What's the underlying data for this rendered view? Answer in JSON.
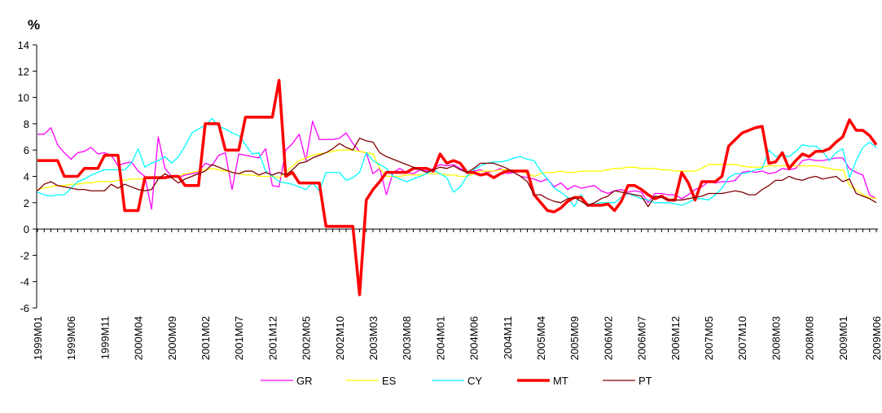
{
  "chart_data": {
    "type": "line",
    "ylabel": "%",
    "categories": [
      "1999M01",
      null,
      null,
      null,
      null,
      "1999M06",
      null,
      null,
      null,
      null,
      "1999M11",
      null,
      null,
      null,
      null,
      "2000M04",
      null,
      null,
      null,
      null,
      "2000M09",
      null,
      null,
      null,
      null,
      "2001M02",
      null,
      null,
      null,
      null,
      "2001M07",
      null,
      null,
      null,
      null,
      "2001M12",
      null,
      null,
      null,
      null,
      "2002M05",
      null,
      null,
      null,
      null,
      "2002M10",
      null,
      null,
      null,
      null,
      "2003M03",
      null,
      null,
      null,
      null,
      "2003M08",
      null,
      null,
      null,
      null,
      "2004M01",
      null,
      null,
      null,
      null,
      "2004M06",
      null,
      null,
      null,
      null,
      "2004M11",
      null,
      null,
      null,
      null,
      "2005M04",
      null,
      null,
      null,
      null,
      "2005M09",
      null,
      null,
      null,
      null,
      "2006M02",
      null,
      null,
      null,
      null,
      "2006M07",
      null,
      null,
      null,
      null,
      "2006M12",
      null,
      null,
      null,
      null,
      "2007M05",
      null,
      null,
      null,
      null,
      "2007M10",
      null,
      null,
      null,
      null,
      "2008M03",
      null,
      null,
      null,
      null,
      "2008M08",
      null,
      null,
      null,
      null,
      "2009M01",
      null,
      null,
      null,
      null,
      "2009M06"
    ],
    "ylim": [
      -6,
      14
    ],
    "yticks": [
      -6,
      -4,
      -2,
      0,
      2,
      4,
      6,
      8,
      10,
      12,
      14
    ],
    "grid": false,
    "legend": "bottom",
    "series": [
      {
        "name": "GR",
        "color": "#ff00ff",
        "width": 1.3,
        "values": [
          7.2,
          7.2,
          7.7,
          6.4,
          5.8,
          5.3,
          5.8,
          5.9,
          6.2,
          5.7,
          5.8,
          5.6,
          4.8,
          5.0,
          5.1,
          4.4,
          4.0,
          1.5,
          7.0,
          4.6,
          4.0,
          3.9,
          4.1,
          4.2,
          4.3,
          5.0,
          4.8,
          5.6,
          5.8,
          3.0,
          5.7,
          5.6,
          5.5,
          5.4,
          6.1,
          3.3,
          3.2,
          6.0,
          6.5,
          7.2,
          5.2,
          8.2,
          6.8,
          6.8,
          6.8,
          6.9,
          7.3,
          6.5,
          5.9,
          5.8,
          4.2,
          4.6,
          2.6,
          4.3,
          4.6,
          4.3,
          4.2,
          4.5,
          4.4,
          4.6,
          4.9,
          4.8,
          4.9,
          4.6,
          4.3,
          4.4,
          4.5,
          4.3,
          4.4,
          4.6,
          4.2,
          4.3,
          4.0,
          3.9,
          3.8,
          3.6,
          3.8,
          3.2,
          3.5,
          3.0,
          3.3,
          3.1,
          3.2,
          3.3,
          2.9,
          2.7,
          2.9,
          3.0,
          2.8,
          2.9,
          2.8,
          2.0,
          2.7,
          2.7,
          2.6,
          2.6,
          2.3,
          2.6,
          3.0,
          3.2,
          3.6,
          3.5,
          3.6,
          3.6,
          3.7,
          4.3,
          4.4,
          4.3,
          4.4,
          4.2,
          4.3,
          4.6,
          4.5,
          4.6,
          5.2,
          5.3,
          5.2,
          5.2,
          5.3,
          5.4,
          5.4,
          4.6,
          4.3,
          4.1,
          2.6,
          2.3
        ]
      },
      {
        "name": "ES",
        "color": "#ffff00",
        "width": 1.3,
        "values": [
          3.0,
          3.1,
          3.2,
          3.3,
          3.3,
          3.4,
          3.4,
          3.5,
          3.5,
          3.6,
          3.6,
          3.6,
          3.7,
          3.7,
          3.8,
          3.8,
          3.8,
          3.9,
          3.9,
          3.9,
          3.9,
          4.0,
          4.2,
          4.3,
          4.4,
          4.5,
          4.6,
          4.5,
          4.4,
          4.3,
          4.2,
          4.1,
          4.1,
          4.0,
          4.0,
          4.0,
          3.9,
          4.3,
          4.8,
          5.2,
          5.4,
          5.6,
          5.7,
          5.8,
          5.9,
          6.0,
          6.0,
          6.0,
          5.9,
          5.8,
          5.7,
          4.6,
          4.0,
          4.0,
          4.0,
          4.1,
          4.1,
          4.1,
          4.2,
          4.2,
          4.2,
          4.1,
          4.1,
          4.0,
          4.0,
          4.2,
          4.4,
          4.4,
          4.4,
          4.5,
          4.5,
          4.4,
          4.4,
          4.2,
          4.0,
          4.2,
          4.3,
          4.3,
          4.4,
          4.3,
          4.3,
          4.4,
          4.4,
          4.4,
          4.4,
          4.5,
          4.6,
          4.6,
          4.7,
          4.7,
          4.6,
          4.6,
          4.6,
          4.5,
          4.5,
          4.4,
          4.4,
          4.4,
          4.4,
          4.6,
          4.9,
          4.9,
          4.9,
          4.9,
          4.9,
          4.8,
          4.7,
          4.7,
          4.7,
          4.8,
          4.8,
          4.8,
          4.8,
          4.8,
          4.8,
          4.8,
          4.8,
          4.7,
          4.6,
          4.5,
          4.5,
          3.3,
          3.0,
          2.6,
          2.4,
          2.3
        ]
      },
      {
        "name": "CY",
        "color": "#00ffff",
        "width": 1.3,
        "values": [
          2.8,
          2.6,
          2.5,
          2.6,
          2.6,
          3.1,
          3.6,
          3.8,
          4.1,
          4.3,
          4.5,
          4.5,
          4.5,
          4.5,
          5.0,
          6.1,
          4.7,
          5.0,
          5.2,
          5.5,
          5.0,
          5.5,
          6.3,
          7.3,
          7.6,
          7.9,
          8.4,
          7.8,
          7.6,
          7.3,
          7.1,
          6.4,
          5.7,
          5.8,
          4.4,
          4.0,
          3.6,
          3.5,
          3.4,
          3.2,
          3.0,
          3.5,
          2.9,
          4.3,
          4.3,
          4.3,
          3.7,
          3.9,
          4.3,
          5.8,
          5.2,
          4.9,
          4.6,
          4.0,
          3.8,
          3.6,
          3.8,
          4.0,
          4.2,
          4.5,
          4.2,
          3.9,
          2.8,
          3.2,
          4.0,
          4.5,
          4.8,
          5.0,
          5.1,
          5.1,
          5.2,
          5.4,
          5.5,
          5.3,
          5.2,
          4.4,
          3.8,
          3.1,
          2.8,
          2.4,
          1.7,
          2.6,
          1.8,
          1.9,
          2.0,
          2.0,
          2.0,
          2.4,
          2.7,
          2.5,
          2.3,
          2.2,
          2.0,
          2.0,
          2.0,
          1.9,
          1.8,
          2.0,
          2.3,
          2.3,
          2.2,
          2.6,
          3.1,
          3.9,
          4.2,
          4.2,
          4.3,
          4.5,
          4.6,
          6.0,
          5.5,
          5.6,
          5.5,
          5.9,
          6.4,
          6.3,
          6.3,
          5.9,
          5.2,
          5.8,
          6.1,
          3.9,
          5.2,
          6.2,
          6.6,
          6.2
        ]
      },
      {
        "name": "MT",
        "color": "#ff0000",
        "width": 3.5,
        "values": [
          5.2,
          5.2,
          5.2,
          5.2,
          4.0,
          4.0,
          4.0,
          4.6,
          4.6,
          4.6,
          5.6,
          5.6,
          5.6,
          1.4,
          1.4,
          1.4,
          3.9,
          3.9,
          3.9,
          3.9,
          4.0,
          4.0,
          3.3,
          3.3,
          3.3,
          8.0,
          8.0,
          8.0,
          6.0,
          6.0,
          6.0,
          8.5,
          8.5,
          8.5,
          8.5,
          8.5,
          11.3,
          4.0,
          4.3,
          3.5,
          3.5,
          3.5,
          3.5,
          0.2,
          0.2,
          0.2,
          0.2,
          0.2,
          -5.0,
          2.2,
          3.0,
          3.6,
          4.3,
          4.3,
          4.3,
          4.3,
          4.6,
          4.6,
          4.6,
          4.4,
          5.7,
          5.0,
          5.2,
          5.0,
          4.3,
          4.3,
          4.1,
          4.2,
          3.9,
          4.2,
          4.4,
          4.4,
          4.4,
          4.4,
          2.6,
          2.0,
          1.4,
          1.3,
          1.6,
          2.1,
          2.4,
          2.4,
          1.8,
          1.8,
          1.8,
          1.9,
          1.4,
          2.1,
          3.3,
          3.3,
          3.0,
          2.6,
          2.3,
          2.5,
          2.2,
          2.2,
          4.3,
          3.5,
          2.2,
          3.6,
          3.6,
          3.6,
          4.0,
          6.3,
          6.8,
          7.3,
          7.5,
          7.7,
          7.8,
          5.0,
          5.1,
          5.8,
          4.6,
          5.2,
          5.7,
          5.5,
          5.9,
          5.9,
          6.1,
          6.6,
          7.0,
          8.3,
          7.5,
          7.5,
          7.1,
          6.4
        ]
      },
      {
        "name": "PT",
        "color": "#800000",
        "width": 1.3,
        "values": [
          2.9,
          3.4,
          3.6,
          3.3,
          3.2,
          3.1,
          3.0,
          3.0,
          2.9,
          2.9,
          2.9,
          3.4,
          3.1,
          3.4,
          3.2,
          3.0,
          2.9,
          3.0,
          3.8,
          4.2,
          3.9,
          3.5,
          3.8,
          4.0,
          4.2,
          4.4,
          4.9,
          4.7,
          4.5,
          4.3,
          4.2,
          4.4,
          4.4,
          4.1,
          4.3,
          4.1,
          4.3,
          4.1,
          4.5,
          5.0,
          5.1,
          5.4,
          5.6,
          5.8,
          6.1,
          6.5,
          6.2,
          6.0,
          6.9,
          6.7,
          6.6,
          5.8,
          5.5,
          5.3,
          5.1,
          4.9,
          4.7,
          4.5,
          4.3,
          4.5,
          4.7,
          4.6,
          4.8,
          4.5,
          4.3,
          4.6,
          5.0,
          5.0,
          5.0,
          4.8,
          4.6,
          4.3,
          4.0,
          3.6,
          2.6,
          2.6,
          2.3,
          2.1,
          2.0,
          2.3,
          2.4,
          2.1,
          1.8,
          2.0,
          2.3,
          2.5,
          2.9,
          2.8,
          2.7,
          2.6,
          2.5,
          1.7,
          2.5,
          2.4,
          2.2,
          2.2,
          2.2,
          2.3,
          2.4,
          2.5,
          2.7,
          2.7,
          2.7,
          2.8,
          2.9,
          2.8,
          2.6,
          2.6,
          3.0,
          3.3,
          3.7,
          3.7,
          4.0,
          3.8,
          3.7,
          3.9,
          4.0,
          3.8,
          3.9,
          4.0,
          3.6,
          3.8,
          2.7,
          2.5,
          2.3,
          2.0
        ]
      }
    ]
  }
}
